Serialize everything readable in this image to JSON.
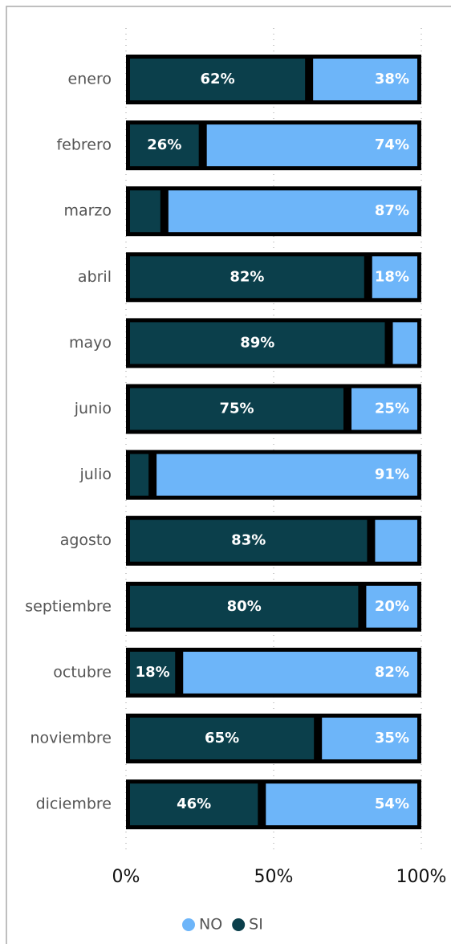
{
  "chart_data": {
    "type": "stacked_bar_horizontal",
    "categories": [
      "enero",
      "febrero",
      "marzo",
      "abril",
      "mayo",
      "junio",
      "julio",
      "agosto",
      "septiembre",
      "octubre",
      "noviembre",
      "diciembre"
    ],
    "series": [
      {
        "name": "SI",
        "color": "#0b3f4b",
        "values": [
          62,
          26,
          13,
          82,
          89,
          75,
          9,
          83,
          80,
          18,
          65,
          46
        ],
        "value_labels": [
          "62%",
          "26%",
          null,
          "82%",
          "89%",
          "75%",
          null,
          "83%",
          "80%",
          "18%",
          "65%",
          "46%"
        ]
      },
      {
        "name": "NO",
        "color": "#6db5f9",
        "values": [
          38,
          74,
          87,
          18,
          11,
          25,
          91,
          17,
          20,
          82,
          35,
          54
        ],
        "value_labels": [
          "38%",
          "74%",
          "87%",
          "18%",
          null,
          "25%",
          "91%",
          null,
          "20%",
          "82%",
          "35%",
          "54%"
        ]
      }
    ],
    "xlim": [
      0,
      100
    ],
    "xticks": [
      {
        "value": 0,
        "label": "0%"
      },
      {
        "value": 50,
        "label": "50%"
      },
      {
        "value": 100,
        "label": "100%"
      }
    ],
    "grid": true,
    "legend": "bottom"
  }
}
